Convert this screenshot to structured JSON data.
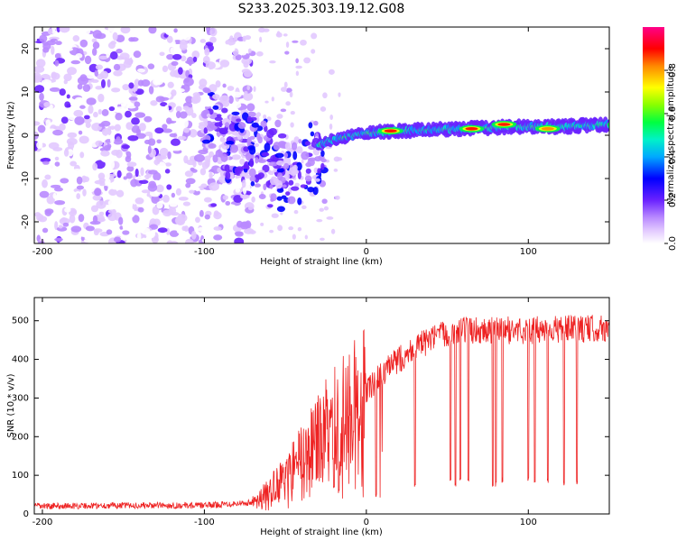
{
  "chart_data": [
    {
      "type": "heatmap",
      "title": "S233.2025.303.19.12.G08",
      "xlabel": "Height of straight line (km)",
      "ylabel": "Frequency (Hz)",
      "xlim": [
        -205,
        150
      ],
      "ylim": [
        -25,
        25
      ],
      "xticks": [
        -200,
        -100,
        0,
        100
      ],
      "yticks": [
        -20,
        -10,
        0,
        10,
        20
      ],
      "colorbar": {
        "label": "Normalized spectral amplitude",
        "range": [
          0,
          1
        ],
        "ticks": [
          0.0,
          0.2,
          0.4,
          0.6,
          0.8
        ]
      },
      "ridge": [
        {
          "x": -90,
          "y": -2
        },
        {
          "x": -70,
          "y": -4
        },
        {
          "x": -50,
          "y": -5
        },
        {
          "x": -35,
          "y": -3
        },
        {
          "x": -20,
          "y": -1
        },
        {
          "x": 0,
          "y": 0.5
        },
        {
          "x": 20,
          "y": 1
        },
        {
          "x": 60,
          "y": 1.5
        },
        {
          "x": 90,
          "y": 2
        },
        {
          "x": 120,
          "y": 2
        },
        {
          "x": 150,
          "y": 2.5
        }
      ],
      "strong_peaks": [
        {
          "x": 15,
          "y": 1,
          "amplitude": 0.95
        },
        {
          "x": 65,
          "y": 1.5,
          "amplitude": 0.9
        },
        {
          "x": 85,
          "y": 2.5,
          "amplitude": 0.95
        },
        {
          "x": 112,
          "y": 1.5,
          "amplitude": 0.85
        }
      ]
    },
    {
      "type": "line",
      "xlabel": "Height of straight line (km)",
      "ylabel": "SNR (10 * v/v)",
      "xlim": [
        -205,
        150
      ],
      "ylim": [
        0,
        560
      ],
      "xticks": [
        -200,
        -100,
        0,
        100
      ],
      "yticks": [
        0,
        100,
        200,
        300,
        400,
        500
      ],
      "color": "#ee2222",
      "trend": [
        {
          "x": -205,
          "y": 20
        },
        {
          "x": -150,
          "y": 22
        },
        {
          "x": -100,
          "y": 22
        },
        {
          "x": -70,
          "y": 30
        },
        {
          "x": -60,
          "y": 60
        },
        {
          "x": -50,
          "y": 100
        },
        {
          "x": -40,
          "y": 150
        },
        {
          "x": -30,
          "y": 200
        },
        {
          "x": -20,
          "y": 250
        },
        {
          "x": -10,
          "y": 280
        },
        {
          "x": 0,
          "y": 320
        },
        {
          "x": 10,
          "y": 360
        },
        {
          "x": 20,
          "y": 400
        },
        {
          "x": 30,
          "y": 430
        },
        {
          "x": 40,
          "y": 450
        },
        {
          "x": 50,
          "y": 470
        },
        {
          "x": 60,
          "y": 475
        },
        {
          "x": 80,
          "y": 475
        },
        {
          "x": 100,
          "y": 475
        },
        {
          "x": 120,
          "y": 478
        },
        {
          "x": 150,
          "y": 480
        }
      ],
      "dropouts": [
        {
          "x": -20,
          "y": 60
        },
        {
          "x": -17,
          "y": 50
        },
        {
          "x": 6,
          "y": 40
        },
        {
          "x": 30,
          "y": 70
        },
        {
          "x": 52,
          "y": 80
        },
        {
          "x": 55,
          "y": 70
        },
        {
          "x": 58,
          "y": 80
        },
        {
          "x": 63,
          "y": 75
        },
        {
          "x": 78,
          "y": 70
        },
        {
          "x": 80,
          "y": 70
        },
        {
          "x": 84,
          "y": 80
        },
        {
          "x": 100,
          "y": 80
        },
        {
          "x": 104,
          "y": 70
        },
        {
          "x": 112,
          "y": 80
        },
        {
          "x": 122,
          "y": 70
        },
        {
          "x": 130,
          "y": 75
        }
      ]
    }
  ]
}
